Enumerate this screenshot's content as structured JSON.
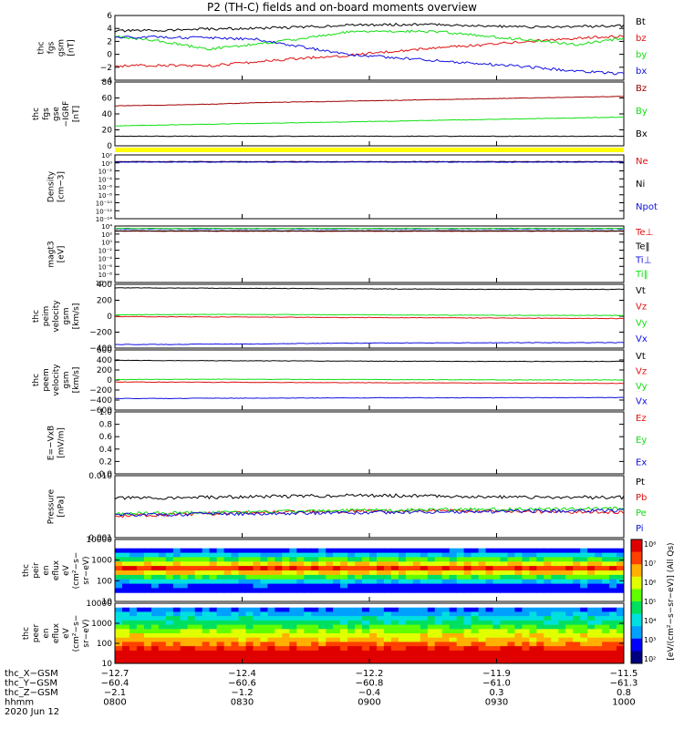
{
  "title": "P2 (TH-C) fields and on-board moments overview",
  "colors": {
    "black": "#000000",
    "red": "#e01010",
    "green": "#10e010",
    "blue": "#1010e0",
    "darkred": "#a00000",
    "yellow": "#ffff00"
  },
  "chart_data": [
    {
      "type": "line",
      "ylabel_lines": [
        "thc",
        "fgs",
        "gsm",
        "[nT]"
      ],
      "yticks": [
        "6",
        "4",
        "2",
        "0",
        "−2",
        "−4"
      ],
      "ylim": [
        -4,
        6
      ],
      "series": [
        {
          "name": "Bt",
          "color": "black",
          "values": [
            3.6,
            3.7,
            3.9,
            4.0,
            4.2,
            4.5,
            4.6,
            4.6,
            4.4,
            4.2,
            4.3,
            4.4
          ]
        },
        {
          "name": "bz",
          "color": "red",
          "values": [
            -1.8,
            -1.7,
            -1.8,
            -1.2,
            -0.6,
            -0.2,
            0.5,
            1.0,
            1.5,
            2.0,
            2.5,
            2.8
          ]
        },
        {
          "name": "by",
          "color": "green",
          "values": [
            2.8,
            2.0,
            0.8,
            1.5,
            2.4,
            3.4,
            3.6,
            3.5,
            2.8,
            2.2,
            1.5,
            2.5
          ]
        },
        {
          "name": "bx",
          "color": "blue",
          "values": [
            2.6,
            2.7,
            2.5,
            2.4,
            1.2,
            0.0,
            -0.5,
            -1.0,
            -1.5,
            -2.0,
            -2.6,
            -3.0
          ]
        }
      ]
    },
    {
      "type": "line",
      "ylabel_lines": [
        "thc",
        "fgs",
        "gse",
        "−IGRF",
        "[nT]"
      ],
      "yticks": [
        "80",
        "60",
        "40",
        "20",
        "0"
      ],
      "ylim": [
        0,
        80
      ],
      "series": [
        {
          "name": "Bz",
          "color": "darkred",
          "values": [
            50,
            51,
            52,
            54,
            55,
            56,
            57,
            58,
            59,
            60,
            61,
            62
          ]
        },
        {
          "name": "By",
          "color": "green",
          "values": [
            25,
            26,
            27,
            28,
            29,
            30,
            31,
            32,
            33,
            34,
            35,
            36
          ]
        },
        {
          "name": "Bx",
          "color": "black",
          "values": [
            12,
            12,
            12,
            12,
            12,
            12,
            12,
            12,
            12,
            12,
            12,
            12
          ]
        }
      ]
    },
    {
      "type": "line",
      "ylabel_lines": [
        "Density",
        "[cm−3]"
      ],
      "yticks": [
        "10²",
        "10⁰",
        "10⁻²",
        "10⁻⁴",
        "10⁻⁶",
        "10⁻⁸",
        "10⁻¹⁰",
        "10⁻¹²",
        "10⁻¹⁴"
      ],
      "ylim": [
        -14,
        2
      ],
      "series": [
        {
          "name": "Ne",
          "color": "red",
          "values": [
            0.3,
            0.3,
            0.3,
            0.3,
            0.3,
            0.3,
            0.3,
            0.3,
            0.3,
            0.3,
            0.3,
            0.3
          ]
        },
        {
          "name": "Ni",
          "color": "black",
          "values": [
            0.3,
            0.3,
            0.3,
            0.3,
            0.3,
            0.3,
            0.3,
            0.3,
            0.3,
            0.3,
            0.3,
            0.3
          ]
        },
        {
          "name": "Npot",
          "color": "blue",
          "values": [
            0.2,
            0.2,
            0.2,
            0.2,
            0.2,
            0.2,
            0.2,
            0.2,
            0.2,
            0.2,
            0.2,
            0.2
          ]
        }
      ]
    },
    {
      "type": "line",
      "ylabel_lines": [
        "magt3",
        "[eV]"
      ],
      "yticks": [
        "10⁴",
        "10²",
        "10⁰",
        "10⁻²",
        "10⁻⁴",
        "10⁻⁶",
        "10⁻⁸",
        "10⁻¹⁰"
      ],
      "ylim": [
        -10,
        4
      ],
      "series": [
        {
          "name": "Te⊥",
          "color": "red",
          "values": [
            2.7,
            2.7,
            2.7,
            2.7,
            2.7,
            2.7,
            2.7,
            2.7,
            2.7,
            2.7,
            2.7,
            2.7
          ]
        },
        {
          "name": "Te‖",
          "color": "black",
          "values": [
            2.8,
            2.8,
            2.8,
            2.8,
            2.8,
            2.8,
            2.8,
            2.8,
            2.8,
            2.8,
            2.8,
            2.8
          ]
        },
        {
          "name": "Ti⊥",
          "color": "blue",
          "values": [
            3.3,
            3.3,
            3.3,
            3.3,
            3.3,
            3.3,
            3.3,
            3.3,
            3.3,
            3.3,
            3.3,
            3.3
          ]
        },
        {
          "name": "Ti‖",
          "color": "green",
          "values": [
            3.4,
            3.4,
            3.4,
            3.4,
            3.4,
            3.4,
            3.4,
            3.4,
            3.4,
            3.4,
            3.4,
            3.4
          ]
        }
      ]
    },
    {
      "type": "line",
      "ylabel_lines": [
        "thc",
        "peim",
        "velocity",
        "gsm",
        "[km/s]"
      ],
      "yticks": [
        "400",
        "200",
        "0",
        "−200",
        "−400"
      ],
      "ylim": [
        -450,
        450
      ],
      "series": [
        {
          "name": "Vt",
          "color": "black",
          "values": [
            400,
            398,
            395,
            392,
            390,
            388,
            385,
            382,
            380,
            378,
            378,
            380
          ]
        },
        {
          "name": "Vz",
          "color": "red",
          "values": [
            -5,
            -8,
            -10,
            -12,
            -15,
            -18,
            -20,
            -22,
            -25,
            -28,
            -30,
            -32
          ]
        },
        {
          "name": "Vy",
          "color": "green",
          "values": [
            20,
            22,
            25,
            24,
            22,
            20,
            18,
            15,
            14,
            12,
            12,
            10
          ]
        },
        {
          "name": "Vx",
          "color": "blue",
          "values": [
            -400,
            -398,
            -395,
            -392,
            -385,
            -380,
            -378,
            -376,
            -375,
            -374,
            -373,
            -372
          ]
        }
      ]
    },
    {
      "type": "line",
      "ylabel_lines": [
        "thc",
        "peem",
        "velocity",
        "gsm",
        "[km/s]"
      ],
      "yticks": [
        "600",
        "400",
        "200",
        "0",
        "−200",
        "−400",
        "−600"
      ],
      "ylim": [
        -600,
        600
      ],
      "series": [
        {
          "name": "Vt",
          "color": "black",
          "values": [
            390,
            388,
            385,
            383,
            380,
            378,
            375,
            373,
            372,
            370,
            370,
            372
          ]
        },
        {
          "name": "Vz",
          "color": "red",
          "values": [
            -40,
            -42,
            -45,
            -48,
            -50,
            -52,
            -55,
            -58,
            -60,
            -62,
            -65,
            -68
          ]
        },
        {
          "name": "Vy",
          "color": "green",
          "values": [
            10,
            12,
            15,
            14,
            12,
            10,
            8,
            5,
            4,
            2,
            2,
            0
          ]
        },
        {
          "name": "Vx",
          "color": "blue",
          "values": [
            -370,
            -368,
            -365,
            -362,
            -360,
            -358,
            -356,
            -355,
            -354,
            -353,
            -352,
            -350
          ]
        }
      ]
    },
    {
      "type": "line",
      "ylabel_lines": [
        "E=−VxB",
        "[mV/m]"
      ],
      "yticks": [
        "1.0",
        "0.8",
        "0.6",
        "0.4",
        "0.2",
        "0.0"
      ],
      "ylim": [
        0,
        1
      ],
      "series": [
        {
          "name": "Ez",
          "color": "red",
          "values": []
        },
        {
          "name": "Ey",
          "color": "green",
          "values": []
        },
        {
          "name": "Ex",
          "color": "blue",
          "values": []
        }
      ]
    },
    {
      "type": "line",
      "ylabel_lines": [
        "Pressure",
        "[nPa]"
      ],
      "yticks": [
        "0.010",
        "0.001"
      ],
      "ylim": [
        0.001,
        0.1
      ],
      "log": true,
      "series": [
        {
          "name": "Pt",
          "color": "black",
          "values": [
            0.019,
            0.019,
            0.02,
            0.021,
            0.022,
            0.023,
            0.023,
            0.022,
            0.021,
            0.02,
            0.02,
            0.02
          ]
        },
        {
          "name": "Pb",
          "color": "red",
          "values": [
            0.005,
            0.0055,
            0.006,
            0.0065,
            0.007,
            0.0072,
            0.0075,
            0.0075,
            0.0072,
            0.007,
            0.0068,
            0.0066
          ]
        },
        {
          "name": "Pe",
          "color": "green",
          "values": [
            0.006,
            0.0062,
            0.0064,
            0.0068,
            0.0072,
            0.0075,
            0.0078,
            0.008,
            0.0082,
            0.0084,
            0.0086,
            0.0088
          ]
        },
        {
          "name": "Pi",
          "color": "blue",
          "values": [
            0.0055,
            0.0056,
            0.0058,
            0.006,
            0.0062,
            0.0064,
            0.0066,
            0.0068,
            0.007,
            0.0072,
            0.0074,
            0.0076
          ]
        }
      ]
    },
    {
      "type": "heatmap",
      "ylabel_lines": [
        "thc",
        "peir",
        "en",
        "eflux",
        "eV",
        "(cm²−s−",
        "sr−eV)"
      ],
      "yticks": [
        "10000",
        "1000",
        "100",
        "10"
      ],
      "ylim": [
        5,
        30000
      ]
    },
    {
      "type": "heatmap",
      "ylabel_lines": [
        "thc",
        "peer",
        "en",
        "eflux",
        "eV",
        "(cm²−s−",
        "sr−eV)"
      ],
      "yticks": [
        "10000",
        "1000",
        "100",
        "10"
      ],
      "ylim": [
        5,
        30000
      ]
    }
  ],
  "colorbar": {
    "label": "[eV/(cm²−s−sr−eV)] (All Qs)",
    "ticks": [
      "10⁸",
      "10⁷",
      "10⁶",
      "10⁵",
      "10⁴",
      "10³",
      "10²"
    ]
  },
  "x_axis": {
    "rows": [
      {
        "label": "thc_X−GSM",
        "values": [
          "−12.7",
          "−12.4",
          "−12.2",
          "−11.9",
          "−11.5"
        ]
      },
      {
        "label": "thc_Y−GSM",
        "values": [
          "−60.4",
          "−60.6",
          "−60.8",
          "−61.0",
          "−61.3"
        ]
      },
      {
        "label": "thc_Z−GSM",
        "values": [
          "−2.1",
          "−1.2",
          "−0.4",
          "0.3",
          "0.8"
        ]
      },
      {
        "label": "hhmm",
        "values": [
          "0800",
          "0830",
          "0900",
          "0930",
          "1000"
        ]
      }
    ],
    "date": "2020 Jun 12"
  }
}
